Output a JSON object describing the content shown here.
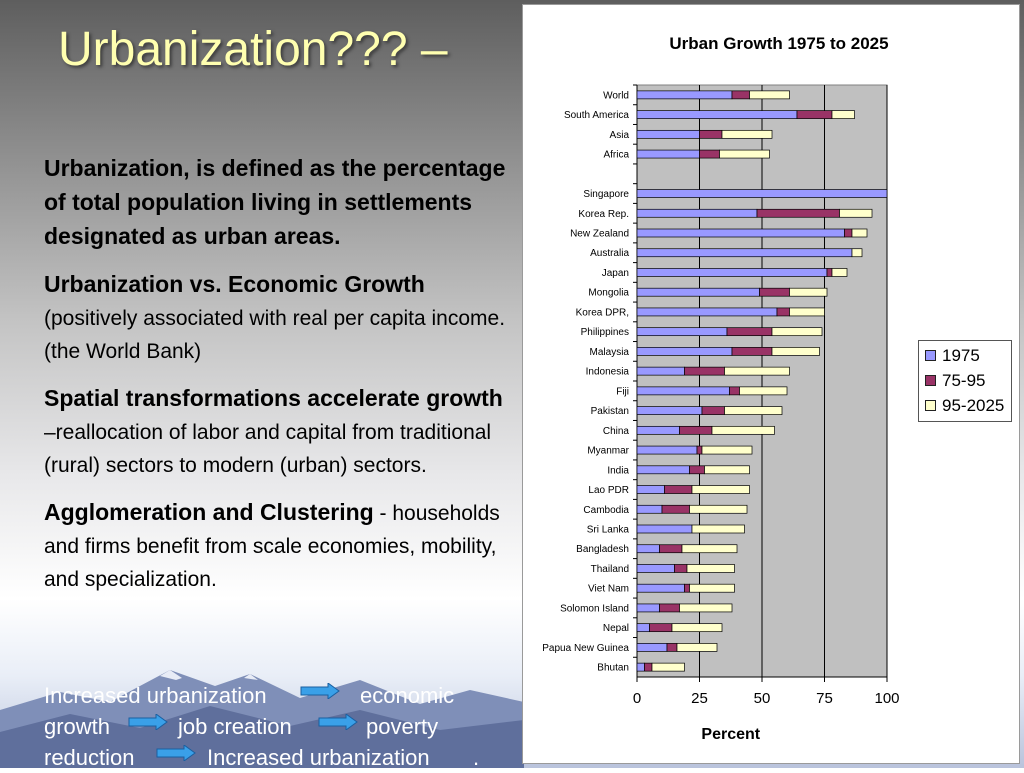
{
  "slide": {
    "title": "Urbanization??? –",
    "paragraphs": [
      {
        "bold": "Urbanization, is defined as the percentage of total population living in settlements designated as urban areas.",
        "detail": ""
      },
      {
        "bold": "Urbanization vs. Economic Growth",
        "detail": " (positively associated with real per capita income. (the World Bank)"
      },
      {
        "bold": "Spatial transformations accelerate growth",
        "detail": " –reallocation of labor and capital from traditional (rural) sectors to modern (urban) sectors."
      },
      {
        "bold": "Agglomeration and Clustering",
        "detail": " - households and firms benefit from scale economies, mobility, and specialization."
      }
    ],
    "flow": {
      "w1": "Increased urbanization",
      "w2": "economic",
      "w3": "growth",
      "w4": "job creation",
      "w5": "poverty",
      "w6": "reduction",
      "w7": "Increased urbanization",
      "w8": "."
    },
    "colors": {
      "title": "#ffffb0",
      "arrow": "#3aa0e8",
      "flow_text": "#ffffff"
    }
  },
  "chart_data": {
    "type": "bar",
    "stacked": true,
    "orientation": "horizontal",
    "title": "Urban Growth 1975 to 2025",
    "xlabel": "Percent",
    "ylabel": "",
    "xlim": [
      0,
      100
    ],
    "xticks": [
      0,
      25,
      50,
      75,
      100
    ],
    "grid": "vertical",
    "legend_position": "right",
    "categories": [
      "World",
      "South America",
      "Asia",
      "Africa",
      "",
      "Singapore",
      "Korea Rep.",
      "New Zealand",
      "Australia",
      "Japan",
      "Mongolia",
      "Korea DPR,",
      "Philippines",
      "Malaysia",
      "Indonesia",
      "Fiji",
      "Pakistan",
      "China",
      "Myanmar",
      "India",
      "Lao PDR",
      "Cambodia",
      "Sri Lanka",
      "Bangladesh",
      "Thailand",
      "Viet Nam",
      "Solomon Island",
      "Nepal",
      "Papua New Guinea",
      "Bhutan"
    ],
    "series": [
      {
        "name": "1975",
        "color": "#9999ff",
        "values": [
          38,
          64,
          25,
          25,
          null,
          100,
          48,
          83,
          86,
          76,
          49,
          56,
          36,
          38,
          19,
          37,
          26,
          17,
          24,
          21,
          11,
          10,
          22,
          9,
          15,
          19,
          9,
          5,
          12,
          3
        ]
      },
      {
        "name": "75-95",
        "color": "#993366",
        "values": [
          7,
          14,
          9,
          8,
          null,
          0,
          33,
          3,
          0,
          2,
          12,
          5,
          18,
          16,
          16,
          4,
          9,
          13,
          2,
          6,
          11,
          11,
          0,
          9,
          5,
          2,
          8,
          9,
          4,
          3
        ]
      },
      {
        "name": "95-2025",
        "color": "#ffffcc",
        "values": [
          16,
          9,
          20,
          20,
          null,
          0,
          13,
          6,
          4,
          6,
          15,
          14,
          20,
          19,
          26,
          19,
          23,
          25,
          20,
          18,
          23,
          23,
          21,
          22,
          19,
          18,
          21,
          20,
          16,
          13
        ]
      }
    ]
  }
}
